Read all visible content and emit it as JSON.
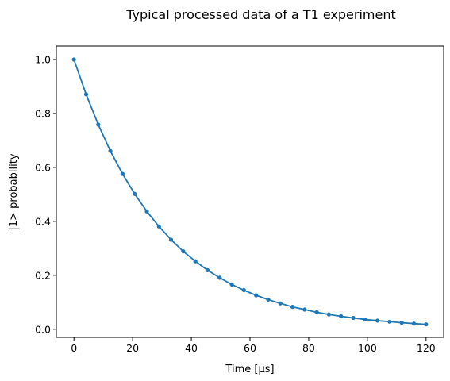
{
  "chart_data": {
    "type": "line",
    "title": "Typical processed data of a T1 experiment",
    "xlabel": "Time [µs]",
    "ylabel": "|1> probability",
    "xlim": [
      -6,
      126
    ],
    "ylim": [
      -0.03,
      1.05
    ],
    "x_ticks": [
      0,
      20,
      40,
      60,
      80,
      100,
      120
    ],
    "x_tick_labels": [
      "0",
      "20",
      "40",
      "60",
      "80",
      "100",
      "120"
    ],
    "y_ticks": [
      0.0,
      0.2,
      0.4,
      0.6,
      0.8,
      1.0
    ],
    "y_tick_labels": [
      "0.0",
      "0.2",
      "0.4",
      "0.6",
      "0.8",
      "1.0"
    ],
    "grid": false,
    "legend": "none",
    "line_color": "#1f77b4",
    "marker": "dot",
    "series": [
      {
        "x": [
          0,
          4.14,
          8.28,
          12.41,
          16.55,
          20.69,
          24.83,
          28.97,
          33.1,
          37.24,
          41.38,
          45.52,
          49.66,
          53.79,
          57.93,
          62.07,
          66.21,
          70.34,
          74.48,
          78.62,
          82.76,
          86.9,
          91.03,
          95.17,
          99.31,
          103.45,
          107.59,
          111.72,
          115.86,
          120
        ],
        "values": [
          1.0,
          0.871,
          0.759,
          0.661,
          0.576,
          0.502,
          0.437,
          0.381,
          0.332,
          0.289,
          0.252,
          0.219,
          0.191,
          0.166,
          0.145,
          0.126,
          0.11,
          0.096,
          0.083,
          0.073,
          0.063,
          0.055,
          0.048,
          0.042,
          0.036,
          0.032,
          0.028,
          0.024,
          0.021,
          0.018
        ]
      }
    ]
  }
}
